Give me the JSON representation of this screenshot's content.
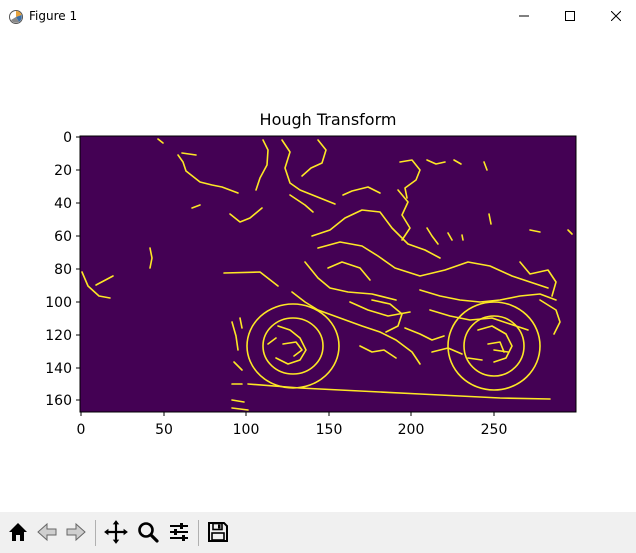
{
  "window": {
    "title": "Figure 1",
    "icon": "matplotlib-figure-icon",
    "controls": [
      "minimize-icon",
      "maximize-icon",
      "close-icon"
    ]
  },
  "plot": {
    "title": "Hough Transform",
    "image": "edge map of a motorcycle (yellow edge pixels on dark purple background)",
    "colormap": "viridis",
    "background_color": "#440154",
    "edge_color": "#fde725"
  },
  "chart_data": {
    "type": "heatmap",
    "title": "Hough Transform",
    "xlabel": "",
    "ylabel": "",
    "x_ticks": [
      "0",
      "50",
      "100",
      "150",
      "200",
      "250"
    ],
    "y_ticks": [
      "0",
      "20",
      "40",
      "60",
      "80",
      "100",
      "120",
      "140",
      "160"
    ],
    "xlim": [
      -0.5,
      299.5
    ],
    "ylim": [
      167.5,
      -0.5
    ],
    "grid": false,
    "legend": "none"
  },
  "toolbar": {
    "buttons": [
      {
        "name": "home-button",
        "icon": "home-icon"
      },
      {
        "name": "back-button",
        "icon": "back-arrow-icon"
      },
      {
        "name": "forward-button",
        "icon": "forward-arrow-icon"
      },
      {
        "name": "pan-button",
        "icon": "pan-move-icon"
      },
      {
        "name": "zoom-button",
        "icon": "zoom-magnifier-icon"
      },
      {
        "name": "configure-subplots-button",
        "icon": "sliders-icon"
      },
      {
        "name": "save-button",
        "icon": "save-disk-icon"
      }
    ]
  }
}
